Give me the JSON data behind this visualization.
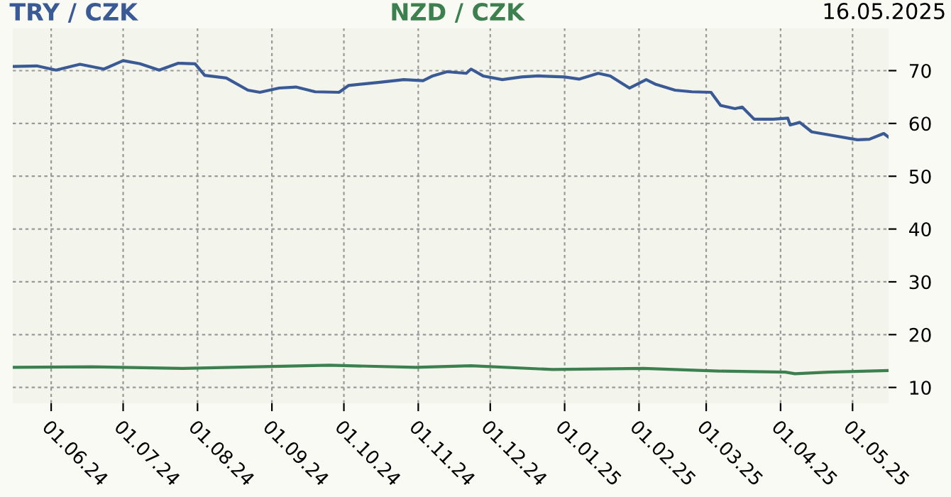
{
  "chart_data": {
    "type": "line",
    "x": [
      "2024-05-16",
      "2024-05-26",
      "2024-06-03",
      "2024-06-13",
      "2024-06-23",
      "2024-07-01",
      "2024-07-08",
      "2024-07-16",
      "2024-07-24",
      "2024-07-31",
      "2024-08-04",
      "2024-08-13",
      "2024-08-22",
      "2024-08-27",
      "2024-09-04",
      "2024-09-11",
      "2024-09-19",
      "2024-09-29",
      "2024-10-03",
      "2024-10-16",
      "2024-10-26",
      "2024-11-03",
      "2024-11-07",
      "2024-11-13",
      "2024-11-21",
      "2024-11-23",
      "2024-11-28",
      "2024-12-06",
      "2024-12-14",
      "2024-12-21",
      "2025-01-01",
      "2025-01-07",
      "2025-01-15",
      "2025-01-20",
      "2025-01-28",
      "2025-02-04",
      "2025-02-08",
      "2025-02-16",
      "2025-02-23",
      "2025-03-03",
      "2025-03-07",
      "2025-03-13",
      "2025-03-16",
      "2025-03-21",
      "2025-03-29",
      "2025-04-04",
      "2025-04-05",
      "2025-04-09",
      "2025-04-14",
      "2025-04-23",
      "2025-05-03",
      "2025-05-08",
      "2025-05-14",
      "2025-05-16"
    ],
    "series": [
      {
        "name": "TRY / CZK",
        "color": "#3a5a95",
        "values": [
          70.8,
          70.9,
          70.1,
          71.2,
          70.3,
          71.9,
          71.3,
          70.1,
          71.4,
          71.3,
          69.1,
          68.6,
          66.3,
          65.9,
          66.7,
          66.9,
          66.0,
          65.9,
          67.2,
          67.8,
          68.3,
          68.1,
          69.0,
          69.8,
          69.5,
          70.3,
          69.0,
          68.3,
          68.8,
          69.0,
          68.8,
          68.4,
          69.5,
          69.0,
          66.7,
          68.3,
          67.4,
          66.3,
          66.0,
          65.9,
          63.4,
          62.8,
          63.1,
          60.8,
          60.8,
          61.0,
          59.7,
          60.2,
          58.4,
          57.7,
          56.9,
          57.0,
          58.1,
          57.4
        ]
      },
      {
        "name": "NZD / CZK",
        "color": "#3d8050",
        "x": [
          "2024-05-16",
          "2024-06-18",
          "2024-07-26",
          "2024-09-25",
          "2024-10-31",
          "2024-11-23",
          "2024-12-27",
          "2025-02-03",
          "2025-03-06",
          "2025-04-03",
          "2025-04-07",
          "2025-04-21",
          "2025-05-16"
        ],
        "values": [
          13.8,
          13.9,
          13.6,
          14.2,
          13.8,
          14.1,
          13.4,
          13.6,
          13.1,
          12.9,
          12.6,
          12.9,
          13.2
        ]
      }
    ],
    "xlim": [
      "2024-05-16",
      "2025-05-16"
    ],
    "xticks": [
      {
        "value": "2024-06-01",
        "label": "01.06.24"
      },
      {
        "value": "2024-07-01",
        "label": "01.07.24"
      },
      {
        "value": "2024-08-01",
        "label": "01.08.24"
      },
      {
        "value": "2024-09-01",
        "label": "01.09.24"
      },
      {
        "value": "2024-10-01",
        "label": "01.10.24"
      },
      {
        "value": "2024-11-01",
        "label": "01.11.24"
      },
      {
        "value": "2024-12-01",
        "label": "01.12.24"
      },
      {
        "value": "2025-01-01",
        "label": "01.01.25"
      },
      {
        "value": "2025-02-01",
        "label": "01.02.25"
      },
      {
        "value": "2025-03-01",
        "label": "01.03.25"
      },
      {
        "value": "2025-04-01",
        "label": "01.04.25"
      },
      {
        "value": "2025-05-01",
        "label": "01.05.25"
      }
    ],
    "ylim": [
      7,
      78
    ],
    "yticks": [
      10,
      20,
      30,
      40,
      50,
      60,
      70
    ],
    "grid": true,
    "legend": "top",
    "line_style": "solid",
    "annotations": [
      "16.05.2025"
    ]
  }
}
